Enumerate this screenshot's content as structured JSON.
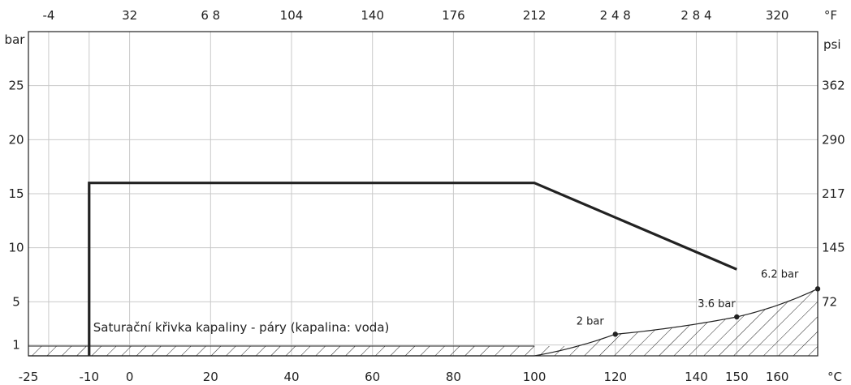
{
  "chart_data": {
    "type": "line",
    "title": "",
    "axes": {
      "x_bottom": {
        "unit": "°C",
        "range": [
          -25,
          170
        ],
        "ticks": [
          -25,
          -10,
          0,
          20,
          40,
          60,
          80,
          100,
          120,
          140,
          150,
          160
        ]
      },
      "x_top": {
        "unit": "°F",
        "ticks": [
          {
            "label": "-4",
            "at_c": -20
          },
          {
            "label": "32",
            "at_c": 0
          },
          {
            "label": "6 8",
            "at_c": 20
          },
          {
            "label": "104",
            "at_c": 40
          },
          {
            "label": "140",
            "at_c": 60
          },
          {
            "label": "176",
            "at_c": 80
          },
          {
            "label": "212",
            "at_c": 100
          },
          {
            "label": "2 4 8",
            "at_c": 120
          },
          {
            "label": "2 8 4",
            "at_c": 140
          },
          {
            "label": "320",
            "at_c": 160
          }
        ]
      },
      "y_left": {
        "unit": "bar",
        "range": [
          0,
          30
        ],
        "ticks": [
          1,
          5,
          10,
          15,
          20,
          25
        ]
      },
      "y_right": {
        "unit": "psi",
        "ticks": [
          {
            "label": "72",
            "at_bar": 5
          },
          {
            "label": "145",
            "at_bar": 10
          },
          {
            "label": "217",
            "at_bar": 15
          },
          {
            "label": "290",
            "at_bar": 20
          },
          {
            "label": "362",
            "at_bar": 25
          }
        ]
      }
    },
    "grid": true,
    "series": [
      {
        "role": "operating-limit",
        "color": "#222222",
        "points": [
          [
            -10,
            0
          ],
          [
            -10,
            16
          ],
          [
            100,
            16
          ],
          [
            150,
            8
          ]
        ]
      },
      {
        "role": "saturation-curve",
        "color": "#222222",
        "points": [
          [
            -25,
            0
          ],
          [
            100,
            0
          ],
          [
            120,
            2
          ],
          [
            150,
            3.6
          ],
          [
            170,
            6.2
          ]
        ]
      }
    ],
    "marked_points": [
      {
        "x": 120,
        "y": 2,
        "label": "2 bar"
      },
      {
        "x": 150,
        "y": 3.6,
        "label": "3.6 bar"
      },
      {
        "x": 170,
        "y": 6.2,
        "label": "6.2 bar"
      }
    ],
    "annotations": [
      {
        "text": "Saturační křivka kapaliny - páry (kapalina: voda)"
      }
    ],
    "hatched_region": "below-saturation-curve"
  }
}
